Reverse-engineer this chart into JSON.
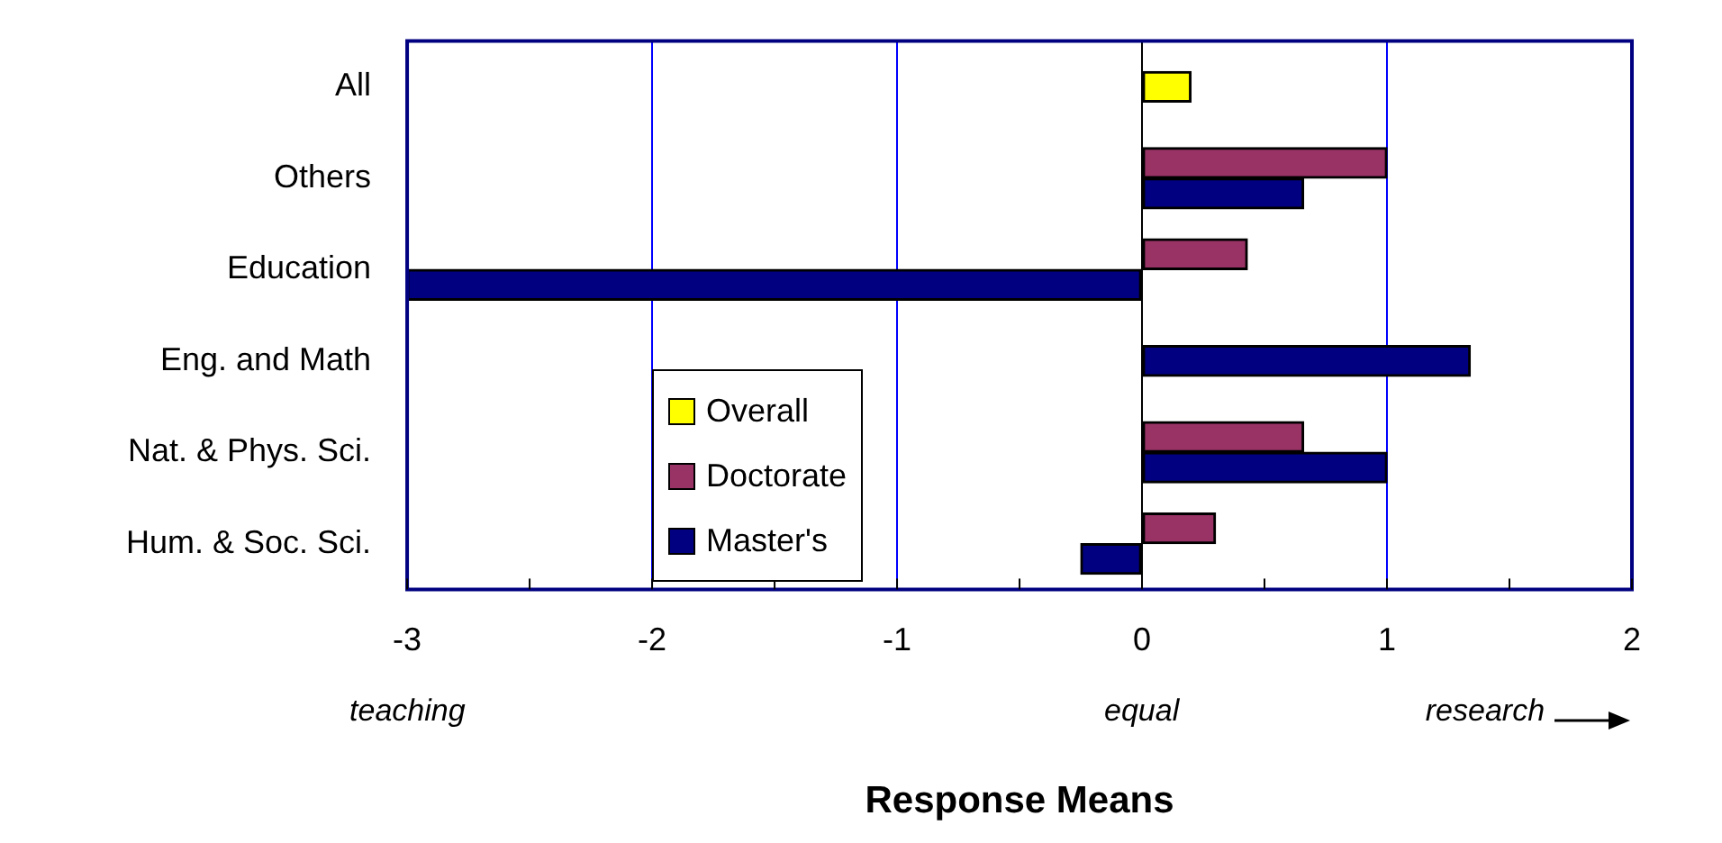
{
  "chart_data": {
    "type": "bar",
    "orientation": "horizontal",
    "xlabel": "Response Means",
    "categories": [
      "All",
      "Others",
      "Education",
      "Eng. and Math",
      "Nat. & Phys. Sci.",
      "Hum. & Soc. Sci."
    ],
    "series": [
      {
        "name": "Overall",
        "color": "#ffff00",
        "values": [
          0.2,
          null,
          null,
          null,
          null,
          null
        ]
      },
      {
        "name": "Doctorate",
        "color": "#993366",
        "values": [
          null,
          1.0,
          0.43,
          null,
          0.66,
          0.3
        ]
      },
      {
        "name": "Master's",
        "color": "#000080",
        "values": [
          null,
          0.66,
          -3.0,
          1.34,
          1.0,
          -0.25
        ]
      }
    ],
    "xlim": [
      -3,
      2
    ],
    "xticks": [
      -3,
      {
        "value": -2.5,
        "label": null
      },
      -2,
      {
        "value": -1.5,
        "label": null
      },
      -1,
      {
        "value": -0.5,
        "label": null
      },
      0,
      {
        "value": 0.5,
        "label": null
      },
      1,
      {
        "value": 1.5,
        "label": null
      },
      2
    ],
    "grid": "x",
    "legend": "left",
    "annotations": [
      "teaching",
      "equal",
      "research"
    ]
  }
}
